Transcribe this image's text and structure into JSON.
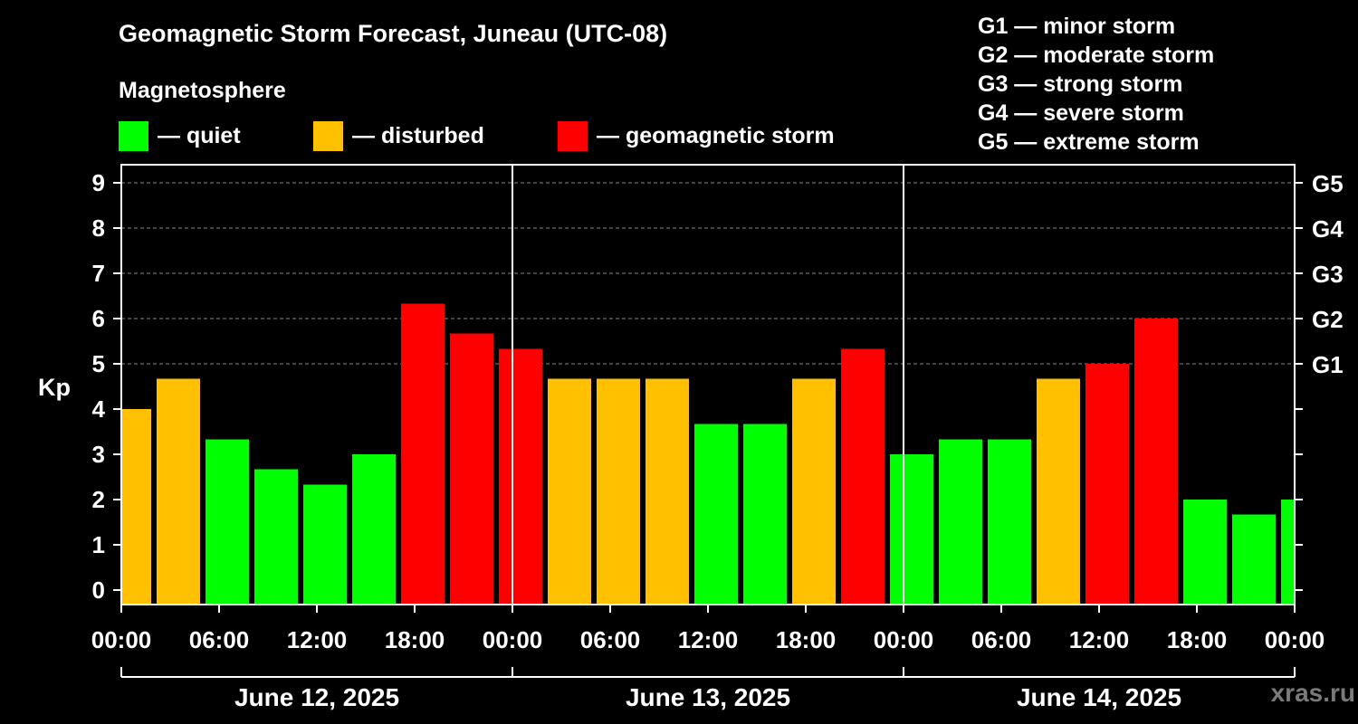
{
  "chart_data": {
    "type": "bar",
    "title": "Geomagnetic Storm Forecast, Juneau (UTC-08)",
    "legend_title": "Magnetosphere",
    "legend": [
      {
        "label": "— quiet",
        "color": "#00ff00"
      },
      {
        "label": "— disturbed",
        "color": "#ffc000"
      },
      {
        "label": "— geomagnetic storm",
        "color": "#ff0000"
      }
    ],
    "g_scale_legend": [
      "G1 — minor storm",
      "G2 — moderate storm",
      "G3 — strong storm",
      "G4 — severe storm",
      "G5 — extreme storm"
    ],
    "ylabel": "Kp",
    "ylim": [
      0,
      9
    ],
    "yticks": [
      "0",
      "1",
      "2",
      "3",
      "4",
      "5",
      "6",
      "7",
      "8",
      "9"
    ],
    "right_axis_labels": [
      {
        "y": 5,
        "label": "G1"
      },
      {
        "y": 6,
        "label": "G2"
      },
      {
        "y": 7,
        "label": "G3"
      },
      {
        "y": 8,
        "label": "G4"
      },
      {
        "y": 9,
        "label": "G5"
      }
    ],
    "x_start": "2025-06-12 00:00",
    "x_end": "2025-06-15 00:00",
    "xticks": [
      "00:00",
      "06:00",
      "12:00",
      "18:00",
      "00:00",
      "06:00",
      "12:00",
      "18:00",
      "00:00",
      "06:00",
      "12:00",
      "18:00",
      "00:00"
    ],
    "days": [
      "June 12, 2025",
      "June 13, 2025",
      "June 14, 2025"
    ],
    "grid_horizontal_dashed": [
      5,
      6,
      7,
      8,
      9
    ],
    "bars": [
      {
        "start": "2025-06-11 23:00",
        "kp": 4.0,
        "level": "disturbed"
      },
      {
        "start": "2025-06-12 02:00",
        "kp": 4.67,
        "level": "disturbed"
      },
      {
        "start": "2025-06-12 05:00",
        "kp": 3.33,
        "level": "quiet"
      },
      {
        "start": "2025-06-12 08:00",
        "kp": 2.67,
        "level": "quiet"
      },
      {
        "start": "2025-06-12 11:00",
        "kp": 2.33,
        "level": "quiet"
      },
      {
        "start": "2025-06-12 14:00",
        "kp": 3.0,
        "level": "quiet"
      },
      {
        "start": "2025-06-12 17:00",
        "kp": 6.33,
        "level": "storm"
      },
      {
        "start": "2025-06-12 20:00",
        "kp": 5.67,
        "level": "storm"
      },
      {
        "start": "2025-06-12 23:00",
        "kp": 5.33,
        "level": "storm"
      },
      {
        "start": "2025-06-13 02:00",
        "kp": 4.67,
        "level": "disturbed"
      },
      {
        "start": "2025-06-13 05:00",
        "kp": 4.67,
        "level": "disturbed"
      },
      {
        "start": "2025-06-13 08:00",
        "kp": 4.67,
        "level": "disturbed"
      },
      {
        "start": "2025-06-13 11:00",
        "kp": 3.67,
        "level": "quiet"
      },
      {
        "start": "2025-06-13 14:00",
        "kp": 3.67,
        "level": "quiet"
      },
      {
        "start": "2025-06-13 17:00",
        "kp": 4.67,
        "level": "disturbed"
      },
      {
        "start": "2025-06-13 20:00",
        "kp": 5.33,
        "level": "storm"
      },
      {
        "start": "2025-06-13 23:00",
        "kp": 3.0,
        "level": "quiet"
      },
      {
        "start": "2025-06-14 02:00",
        "kp": 3.33,
        "level": "quiet"
      },
      {
        "start": "2025-06-14 05:00",
        "kp": 3.33,
        "level": "quiet"
      },
      {
        "start": "2025-06-14 08:00",
        "kp": 4.67,
        "level": "disturbed"
      },
      {
        "start": "2025-06-14 11:00",
        "kp": 5.0,
        "level": "storm"
      },
      {
        "start": "2025-06-14 14:00",
        "kp": 6.0,
        "level": "storm"
      },
      {
        "start": "2025-06-14 17:00",
        "kp": 2.0,
        "level": "quiet"
      },
      {
        "start": "2025-06-14 20:00",
        "kp": 1.67,
        "level": "quiet"
      },
      {
        "start": "2025-06-14 23:00",
        "kp": 2.0,
        "level": "quiet"
      }
    ],
    "colors": {
      "quiet": "#00ff00",
      "disturbed": "#ffc000",
      "storm": "#ff0000"
    }
  },
  "watermark": "xras.ru"
}
